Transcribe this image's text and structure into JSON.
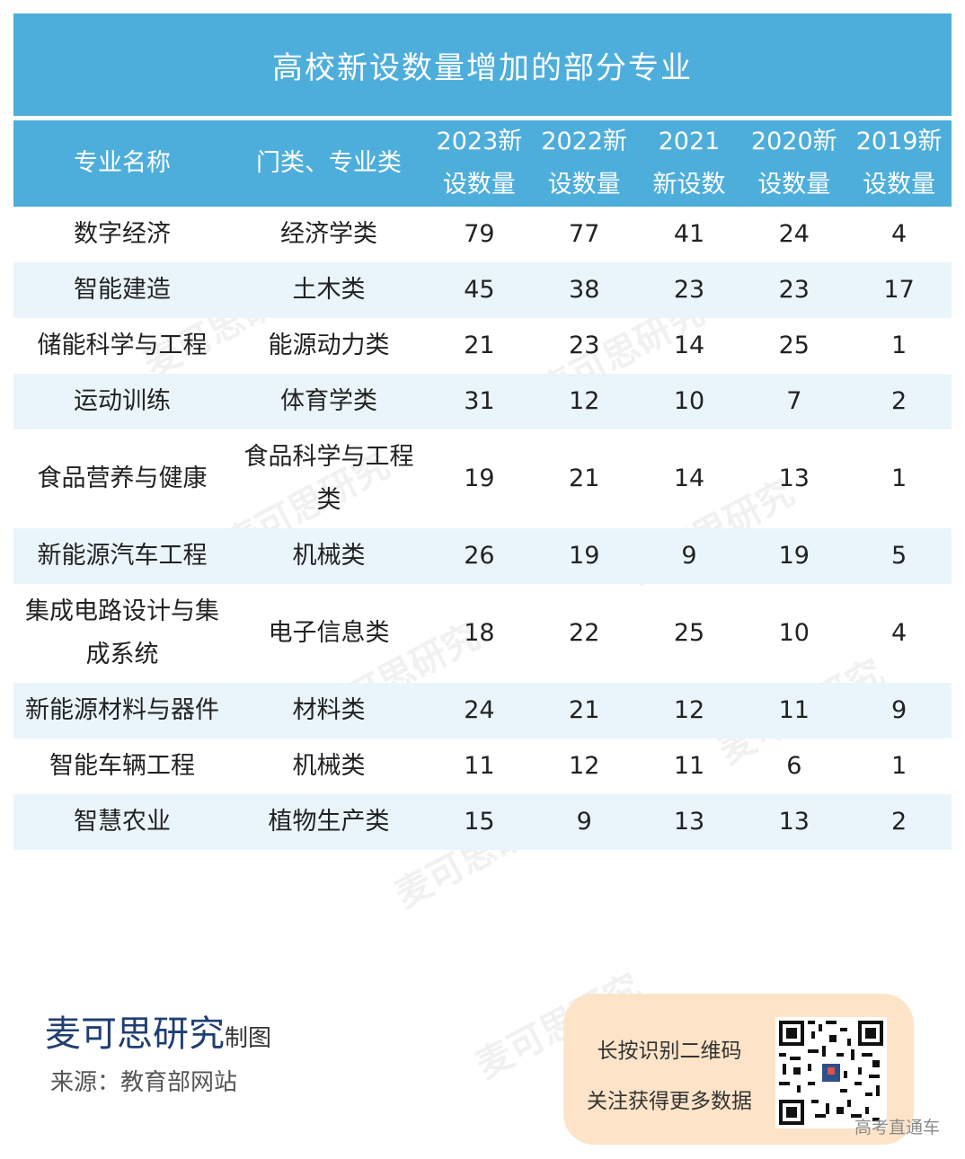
{
  "title": "高校新设数量增加的部分专业",
  "headers": [
    "专业名称",
    "门类、专业类",
    "2023新\n设数量",
    "2022新\n设数量",
    "2021\n新设数",
    "2020新\n设数量",
    "2019新\n设数量"
  ],
  "rows": [
    {
      "name": "数字经济",
      "category": "经济学类",
      "values": [
        "79",
        "77",
        "41",
        "24",
        "4"
      ]
    },
    {
      "name": "智能建造",
      "category": "土木类",
      "values": [
        "45",
        "38",
        "23",
        "23",
        "17"
      ]
    },
    {
      "name": "储能科学与工程",
      "category": "能源动力类",
      "values": [
        "21",
        "23",
        "14",
        "25",
        "1"
      ]
    },
    {
      "name": "运动训练",
      "category": "体育学类",
      "values": [
        "31",
        "12",
        "10",
        "7",
        "2"
      ]
    },
    {
      "name": "食品营养与健康",
      "category": "食品科学与工程类",
      "values": [
        "19",
        "21",
        "14",
        "13",
        "1"
      ]
    },
    {
      "name": "新能源汽车工程",
      "category": "机械类",
      "values": [
        "26",
        "19",
        "9",
        "19",
        "5"
      ]
    },
    {
      "name": "集成电路设计与集成系统",
      "category": "电子信息类",
      "values": [
        "18",
        "22",
        "25",
        "10",
        "4"
      ]
    },
    {
      "name": "新能源材料与器件",
      "category": "材料类",
      "values": [
        "24",
        "21",
        "12",
        "11",
        "9"
      ]
    },
    {
      "name": "智能车辆工程",
      "category": "机械类",
      "values": [
        "11",
        "12",
        "11",
        "6",
        "1"
      ]
    },
    {
      "name": "智慧农业",
      "category": "植物生产类",
      "values": [
        "15",
        "9",
        "13",
        "13",
        "2"
      ]
    }
  ],
  "footer": {
    "brand": "麦可思研究",
    "brand_suffix": "制图",
    "source": "来源：教育部网站"
  },
  "qr": {
    "line1": "长按识别二维码",
    "line2": "关注获得更多数据"
  },
  "watermark_text": "麦可思研究",
  "corner_note": "高考直通车",
  "colors": {
    "header_bg": "#4eaedb",
    "stripe": "#eaf5fb",
    "qr_box": "#fde4c8",
    "brand": "#1f3f73"
  }
}
